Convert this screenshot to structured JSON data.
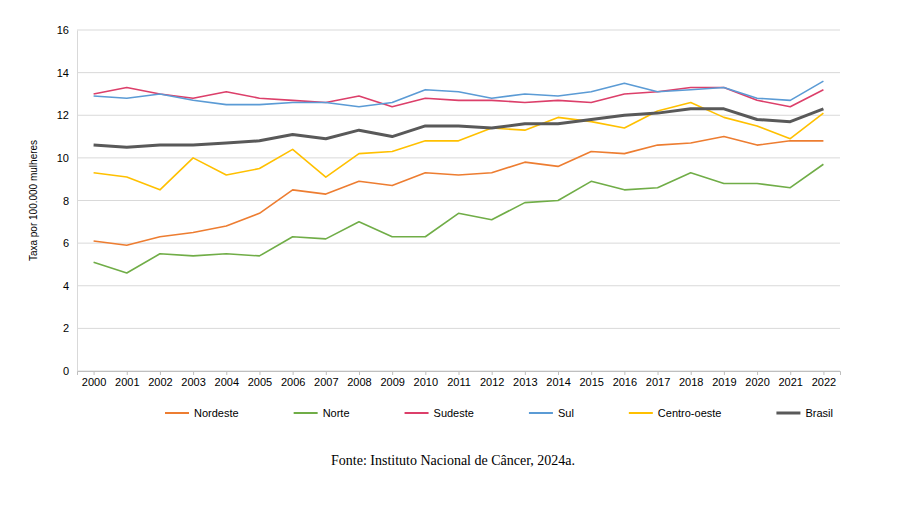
{
  "chart_data": {
    "type": "line",
    "y_label": "Taxa por 100.000 mulheres",
    "source": "Fonte: Instituto Nacional de Câncer, 2024a.",
    "categories": [
      "2000",
      "2001",
      "2002",
      "2003",
      "2004",
      "2005",
      "2006",
      "2007",
      "2008",
      "2009",
      "2010",
      "2011",
      "2012",
      "2013",
      "2014",
      "2015",
      "2016",
      "2017",
      "2018",
      "2019",
      "2020",
      "2021",
      "2022"
    ],
    "series": [
      {
        "name": "Nordeste",
        "color": "#ed7d31",
        "values": [
          6.1,
          5.9,
          6.3,
          6.5,
          6.8,
          7.4,
          8.5,
          8.3,
          8.9,
          8.7,
          9.3,
          9.2,
          9.3,
          9.8,
          9.6,
          10.3,
          10.2,
          10.6,
          10.7,
          11.0,
          10.6,
          10.8,
          10.8
        ]
      },
      {
        "name": "Norte",
        "color": "#70ad47",
        "values": [
          5.1,
          4.6,
          5.5,
          5.4,
          5.5,
          5.4,
          6.3,
          6.2,
          7.0,
          6.3,
          6.3,
          7.4,
          7.1,
          7.9,
          8.0,
          8.9,
          8.5,
          8.6,
          9.3,
          8.8,
          8.8,
          8.6,
          9.7
        ]
      },
      {
        "name": "Sudeste",
        "color": "#dc3f6a",
        "values": [
          13.0,
          13.3,
          13.0,
          12.8,
          13.1,
          12.8,
          12.7,
          12.6,
          12.9,
          12.4,
          12.8,
          12.7,
          12.7,
          12.6,
          12.7,
          12.6,
          13.0,
          13.1,
          13.3,
          13.3,
          12.7,
          12.4,
          13.2
        ]
      },
      {
        "name": "Sul",
        "color": "#5b9bd5",
        "values": [
          12.9,
          12.8,
          13.0,
          12.7,
          12.5,
          12.5,
          12.6,
          12.6,
          12.4,
          12.6,
          13.2,
          13.1,
          12.8,
          13.0,
          12.9,
          13.1,
          13.5,
          13.1,
          13.2,
          13.3,
          12.8,
          12.7,
          13.6
        ]
      },
      {
        "name": "Centro-oeste",
        "color": "#ffc000",
        "values": [
          9.3,
          9.1,
          8.5,
          10.0,
          9.2,
          9.5,
          10.4,
          9.1,
          10.2,
          10.3,
          10.8,
          10.8,
          11.4,
          11.3,
          11.9,
          11.7,
          11.4,
          12.2,
          12.6,
          11.9,
          11.5,
          10.9,
          12.1
        ]
      },
      {
        "name": "Brasil",
        "color": "#595959",
        "values": [
          10.6,
          10.5,
          10.6,
          10.6,
          10.7,
          10.8,
          11.1,
          10.9,
          11.3,
          11.0,
          11.5,
          11.5,
          11.4,
          11.6,
          11.6,
          11.8,
          12.0,
          12.1,
          12.3,
          12.3,
          11.8,
          11.7,
          12.3
        ]
      }
    ],
    "ylim": [
      0,
      16
    ],
    "yticks": [
      0,
      2,
      4,
      6,
      8,
      10,
      12,
      14,
      16
    ],
    "grid": true,
    "legend": "bottom"
  }
}
